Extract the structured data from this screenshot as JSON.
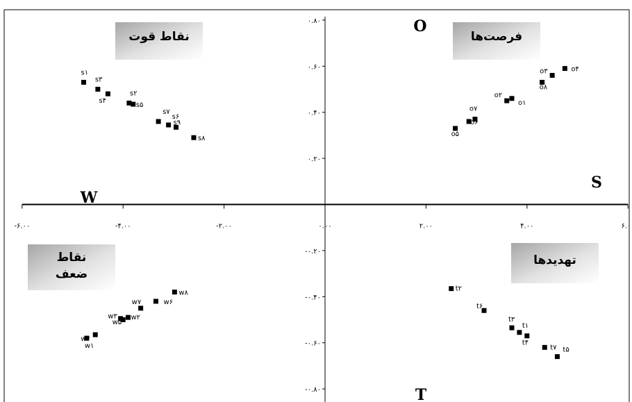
{
  "chart_data": {
    "type": "scatter",
    "title": "",
    "xlabel": "",
    "ylabel": "",
    "xlim": [
      -6,
      6
    ],
    "ylim": [
      -0.8,
      0.8
    ],
    "x_ticks": [
      "-۶.۰۰",
      "-۴.۰۰",
      "-۲.۰۰",
      "۰.۰۰",
      "۲.۰۰",
      "۴.۰۰",
      "۶.۰۰"
    ],
    "x_tick_values": [
      -6,
      -4,
      -2,
      0,
      2,
      4,
      6
    ],
    "y_ticks": [
      "۰.۸۰",
      "۰.۶۰",
      "۰.۴۰",
      "۰.۲۰",
      "-۰.۲۰",
      "-۰.۴۰",
      "-۰.۶۰",
      "-۰.۸۰"
    ],
    "y_tick_values": [
      0.8,
      0.6,
      0.4,
      0.2,
      -0.2,
      -0.4,
      -0.6,
      -0.8
    ],
    "axis_letters": {
      "top": "O",
      "right": "S",
      "left": "W",
      "bottom": "T"
    },
    "quadrant_labels": {
      "top_left": "نقاط قوت",
      "top_right": "فرصت‌ها",
      "bottom_left_line1": "نقاط",
      "bottom_left_line2": "ضعف",
      "bottom_right": "تهدیدها"
    },
    "points": [
      {
        "label": "s۱",
        "x": -4.78,
        "y": 0.53
      },
      {
        "label": "s۳",
        "x": -4.5,
        "y": 0.5
      },
      {
        "label": "s۴",
        "x": -4.3,
        "y": 0.48
      },
      {
        "label": "s۲",
        "x": -3.88,
        "y": 0.44
      },
      {
        "label": "s۵",
        "x": -3.8,
        "y": 0.435
      },
      {
        "label": "s۷",
        "x": -3.3,
        "y": 0.36
      },
      {
        "label": "s۶",
        "x": -3.1,
        "y": 0.345
      },
      {
        "label": "s۹",
        "x": -2.95,
        "y": 0.335
      },
      {
        "label": "s۸",
        "x": -2.6,
        "y": 0.29
      },
      {
        "label": "o۴",
        "x": 4.75,
        "y": 0.59
      },
      {
        "label": "o۳",
        "x": 4.5,
        "y": 0.56
      },
      {
        "label": "o۸",
        "x": 4.3,
        "y": 0.53
      },
      {
        "label": "o۲",
        "x": 3.6,
        "y": 0.45
      },
      {
        "label": "o۱",
        "x": 3.7,
        "y": 0.46
      },
      {
        "label": "o۷",
        "x": 2.97,
        "y": 0.37
      },
      {
        "label": "o۶",
        "x": 2.85,
        "y": 0.36
      },
      {
        "label": "o۵",
        "x": 2.58,
        "y": 0.33
      },
      {
        "label": "w۸",
        "x": -2.98,
        "y": -0.38
      },
      {
        "label": "w۶",
        "x": -3.35,
        "y": -0.42
      },
      {
        "label": "w۷",
        "x": -3.65,
        "y": -0.45
      },
      {
        "label": "w۲",
        "x": -3.9,
        "y": -0.49
      },
      {
        "label": "w۵",
        "x": -4.05,
        "y": -0.495
      },
      {
        "label": "w۳",
        "x": -4.0,
        "y": -0.5
      },
      {
        "label": "w۴",
        "x": -4.55,
        "y": -0.565
      },
      {
        "label": "w۱",
        "x": -4.72,
        "y": -0.58
      },
      {
        "label": "t۲",
        "x": 2.5,
        "y": -0.365
      },
      {
        "label": "t۶",
        "x": 3.15,
        "y": -0.46
      },
      {
        "label": "t۳",
        "x": 3.7,
        "y": -0.535
      },
      {
        "label": "t۱",
        "x": 3.85,
        "y": -0.555
      },
      {
        "label": "t۴",
        "x": 4.0,
        "y": -0.57
      },
      {
        "label": "t۷",
        "x": 4.35,
        "y": -0.62
      },
      {
        "label": "t۵",
        "x": 4.6,
        "y": -0.66
      }
    ]
  }
}
